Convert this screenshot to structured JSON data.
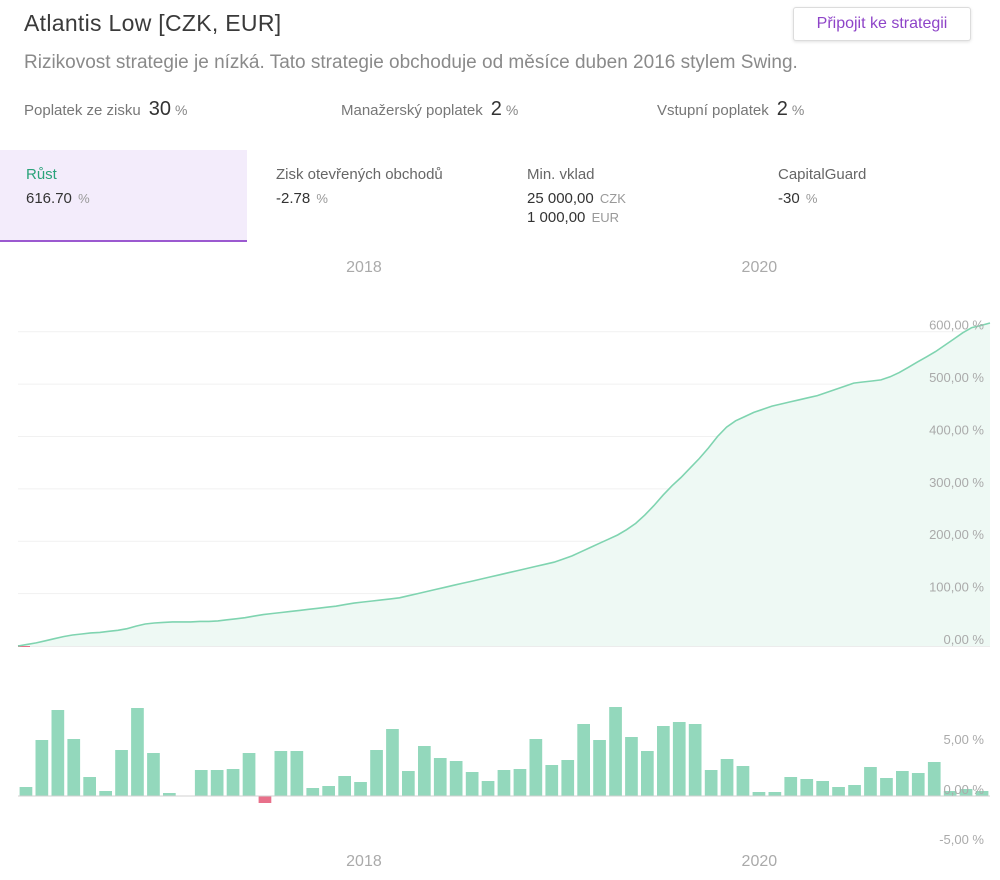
{
  "header": {
    "title": "Atlantis Low [CZK, EUR]",
    "join_label": "Připojit ke strategii",
    "subtitle": "Rizikovost strategie je nízká. Tato strategie obchoduje od měsíce duben 2016 stylem Swing."
  },
  "fees": [
    {
      "label": "Poplatek ze zisku",
      "value": "30",
      "unit": "%"
    },
    {
      "label": "Manažerský poplatek",
      "value": "2",
      "unit": "%"
    },
    {
      "label": "Vstupní poplatek",
      "value": "2",
      "unit": "%"
    }
  ],
  "stats": {
    "growth": {
      "label": "Růst",
      "value": "616.70",
      "unit": "%"
    },
    "open_profit": {
      "label": "Zisk otevřených obchodů",
      "value": "-2.78",
      "unit": "%"
    },
    "min_deposit": {
      "label": "Min. vklad",
      "value1": "25 000,00",
      "unit1": "CZK",
      "value2": "1 000,00",
      "unit2": "EUR"
    },
    "capital_guard": {
      "label": "CapitalGuard",
      "value": "-30",
      "unit": "%"
    }
  },
  "colors": {
    "line": "#7fd4b0",
    "area": "#eef9f4",
    "bar_positive": "#93d8bc",
    "bar_negative": "#e8708a",
    "accent": "#9b59d0"
  },
  "chart_data": [
    {
      "type": "area",
      "x_tick_labels": [
        "2018",
        "2020"
      ],
      "y_tick_labels": [
        "0,00 %",
        "100,00 %",
        "200,00 %",
        "300,00 %",
        "400,00 %",
        "500,00 %",
        "600,00 %"
      ],
      "ylim": [
        0,
        616.7
      ],
      "x_start": "2016-04",
      "x_end": "2021-03",
      "series": [
        {
          "values": [
            0,
            3,
            6,
            10,
            14,
            18,
            21,
            23,
            25,
            26,
            28,
            30,
            33,
            38,
            42,
            44,
            45,
            46,
            46,
            46,
            47,
            47,
            48,
            50,
            52,
            54,
            57,
            60,
            62,
            64,
            66,
            68,
            70,
            72,
            74,
            76,
            79,
            82,
            84,
            86,
            88,
            90,
            92,
            96,
            100,
            104,
            108,
            112,
            116,
            120,
            124,
            128,
            132,
            136,
            140,
            144,
            148,
            152,
            156,
            160,
            166,
            172,
            180,
            188,
            196,
            204,
            212,
            222,
            234,
            250,
            268,
            288,
            306,
            322,
            340,
            358,
            378,
            400,
            418,
            430,
            438,
            446,
            452,
            458,
            462,
            466,
            470,
            474,
            478,
            484,
            490,
            496,
            502,
            504,
            506,
            508,
            514,
            522,
            532,
            542,
            552,
            562,
            574,
            586,
            598,
            608,
            612,
            616.7
          ]
        }
      ]
    },
    {
      "type": "bar",
      "x_tick_labels": [
        "2018",
        "2020"
      ],
      "y_tick_labels": [
        "5,00 %",
        "0,00 %",
        "-5,00 %"
      ],
      "ylim": [
        -5,
        10
      ],
      "x_start": "2016-04",
      "x_end": "2021-03",
      "values": [
        0.9,
        5.6,
        8.6,
        5.7,
        1.9,
        0.5,
        4.6,
        8.8,
        4.3,
        0.3,
        0,
        2.6,
        2.6,
        2.7,
        4.3,
        -0.7,
        4.5,
        4.5,
        0.8,
        1.0,
        2.0,
        1.4,
        4.6,
        6.7,
        2.5,
        5.0,
        3.8,
        3.5,
        2.4,
        1.5,
        2.6,
        2.7,
        5.7,
        3.1,
        3.6,
        7.2,
        5.6,
        8.9,
        5.9,
        4.5,
        7.0,
        7.4,
        7.2,
        2.6,
        3.7,
        3.0,
        0.4,
        0.4,
        1.9,
        1.7,
        1.5,
        0.9,
        1.1,
        2.9,
        1.8,
        2.5,
        2.3,
        3.4,
        0.5,
        0.7,
        0.5
      ]
    }
  ]
}
